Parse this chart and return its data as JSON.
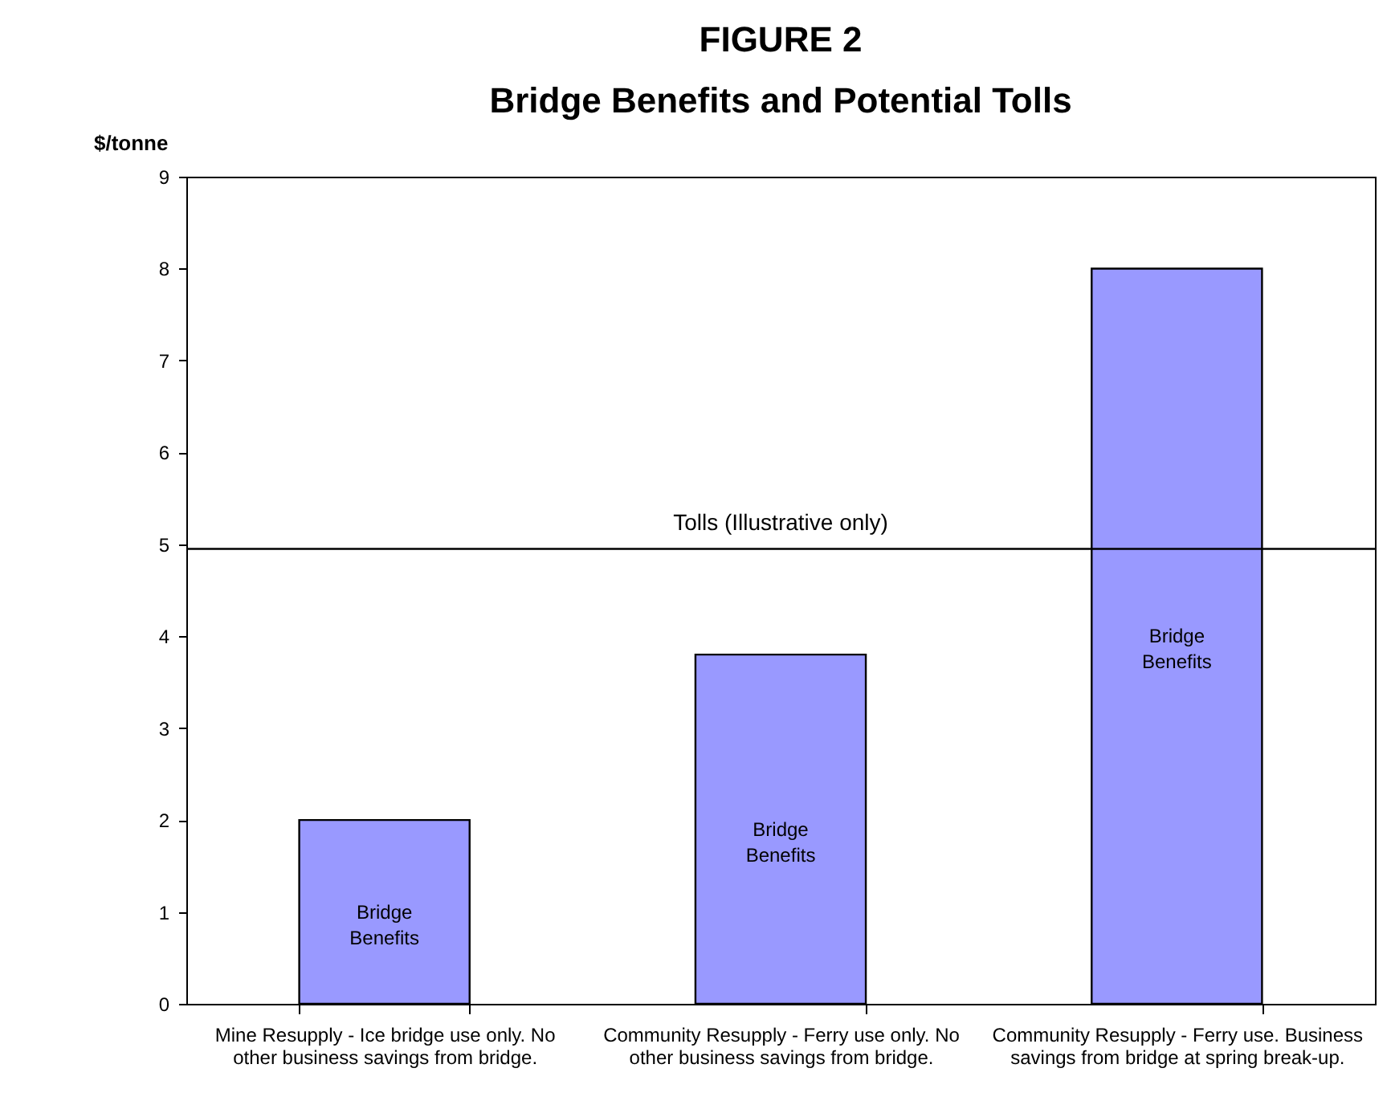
{
  "chart_data": {
    "type": "bar",
    "title": "FIGURE 2",
    "subtitle": "Bridge Benefits and Potential Tolls",
    "ylabel": "$/tonne",
    "categories": [
      "Mine Resupply - Ice bridge use only. No other business savings from bridge.",
      "Community Resupply - Ferry use only.  No other business savings from bridge.",
      "Community Resupply - Ferry use. Business savings from bridge at spring break-up."
    ],
    "values": [
      2,
      3.8,
      8
    ],
    "color": "#9999ff",
    "ylim": [
      0,
      9
    ],
    "yticks": [
      0,
      1,
      2,
      3,
      4,
      5,
      6,
      7,
      8,
      9
    ],
    "grid": false,
    "ref_lines": [
      {
        "axis": "y",
        "value": 4.95,
        "label": "Tolls (Illustrative only)",
        "color": "#000000"
      }
    ],
    "annotations": [
      "Bridge Benefits",
      "Bridge Benefits",
      "Bridge Benefits"
    ]
  }
}
